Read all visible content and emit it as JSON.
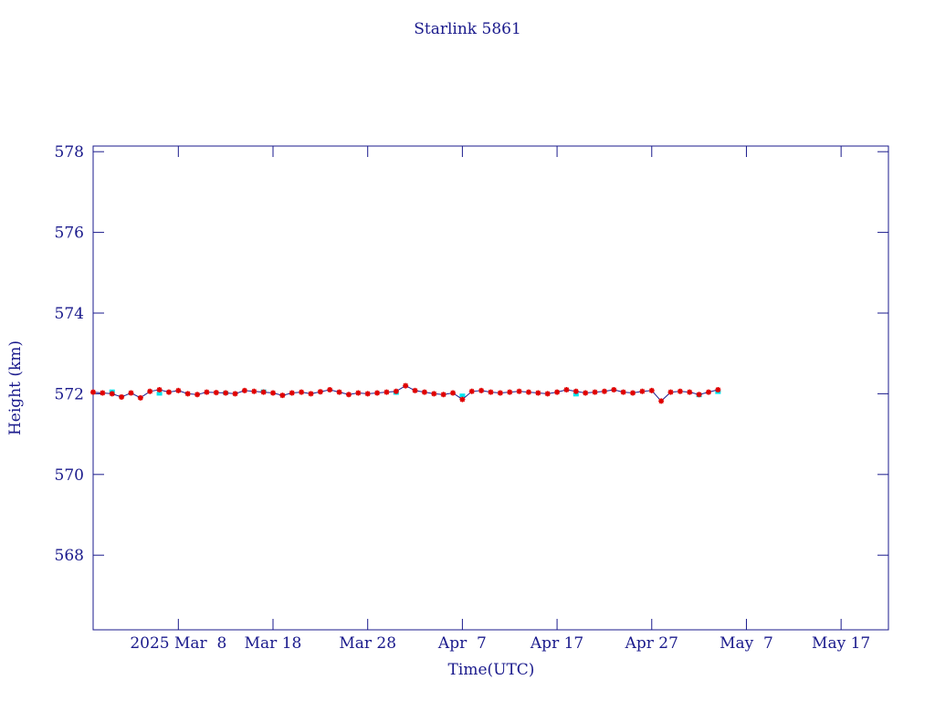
{
  "chart_data": {
    "type": "line",
    "title": "Starlink 5861",
    "xlabel": "Time(UTC)",
    "ylabel": "Height (km)",
    "xlim": [
      "2025-02-27",
      "2025-05-22"
    ],
    "ylim": [
      566.15,
      578.14
    ],
    "xticks": [
      {
        "value": "2025-03-08",
        "label": "2025 Mar  8"
      },
      {
        "value": "2025-03-18",
        "label": "Mar 18"
      },
      {
        "value": "2025-03-28",
        "label": "Mar 28"
      },
      {
        "value": "2025-04-07",
        "label": "Apr  7"
      },
      {
        "value": "2025-04-17",
        "label": "Apr 17"
      },
      {
        "value": "2025-04-27",
        "label": "Apr 27"
      },
      {
        "value": "2025-05-07",
        "label": "May  7"
      },
      {
        "value": "2025-05-17",
        "label": "May 17"
      }
    ],
    "yticks": [
      568,
      570,
      572,
      574,
      576,
      578
    ],
    "series": [
      {
        "color": "#e00000",
        "line_color": "#1a1a8c",
        "x": [
          "2025-02-27",
          "2025-02-28",
          "2025-03-01",
          "2025-03-02",
          "2025-03-03",
          "2025-03-04",
          "2025-03-05",
          "2025-03-06",
          "2025-03-07",
          "2025-03-08",
          "2025-03-09",
          "2025-03-10",
          "2025-03-11",
          "2025-03-12",
          "2025-03-13",
          "2025-03-14",
          "2025-03-15",
          "2025-03-16",
          "2025-03-17",
          "2025-03-18",
          "2025-03-19",
          "2025-03-20",
          "2025-03-21",
          "2025-03-22",
          "2025-03-23",
          "2025-03-24",
          "2025-03-25",
          "2025-03-26",
          "2025-03-27",
          "2025-03-28",
          "2025-03-29",
          "2025-03-30",
          "2025-03-31",
          "2025-04-01",
          "2025-04-02",
          "2025-04-03",
          "2025-04-04",
          "2025-04-05",
          "2025-04-06",
          "2025-04-07",
          "2025-04-08",
          "2025-04-09",
          "2025-04-10",
          "2025-04-11",
          "2025-04-12",
          "2025-04-13",
          "2025-04-14",
          "2025-04-15",
          "2025-04-16",
          "2025-04-17",
          "2025-04-18",
          "2025-04-19",
          "2025-04-20",
          "2025-04-21",
          "2025-04-22",
          "2025-04-23",
          "2025-04-24",
          "2025-04-25",
          "2025-04-26",
          "2025-04-27",
          "2025-04-28",
          "2025-04-29",
          "2025-04-30",
          "2025-05-01",
          "2025-05-02",
          "2025-05-03",
          "2025-05-04"
        ],
        "values": [
          572.04,
          572.02,
          572.0,
          571.92,
          572.02,
          571.9,
          572.06,
          572.1,
          572.04,
          572.08,
          572.0,
          571.98,
          572.04,
          572.03,
          572.02,
          572.0,
          572.08,
          572.06,
          572.04,
          572.02,
          571.96,
          572.02,
          572.04,
          572.0,
          572.05,
          572.1,
          572.04,
          571.98,
          572.02,
          572.0,
          572.02,
          572.04,
          572.06,
          572.2,
          572.08,
          572.04,
          572.0,
          571.98,
          572.02,
          571.86,
          572.06,
          572.08,
          572.04,
          572.02,
          572.04,
          572.06,
          572.04,
          572.02,
          572.0,
          572.04,
          572.1,
          572.06,
          572.02,
          572.04,
          572.06,
          572.1,
          572.04,
          572.02,
          572.06,
          572.08,
          571.82,
          572.04,
          572.06,
          572.04,
          571.98,
          572.04,
          572.1
        ]
      },
      {
        "color": "#00e5ee",
        "x": [
          "2025-03-01",
          "2025-03-06",
          "2025-03-13",
          "2025-03-17",
          "2025-03-31",
          "2025-04-07",
          "2025-04-19",
          "2025-05-02",
          "2025-05-04"
        ],
        "values": [
          572.06,
          572.0,
          572.02,
          572.06,
          572.02,
          571.96,
          571.98,
          571.96,
          572.04
        ]
      }
    ]
  }
}
